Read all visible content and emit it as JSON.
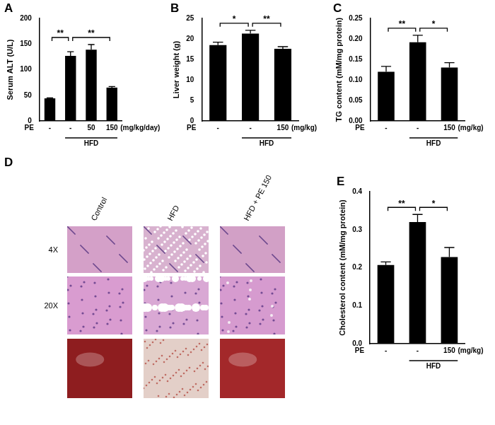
{
  "chart_data": [
    {
      "label": "A",
      "type": "bar",
      "y_label": "Serum ALT (U/L)",
      "categories": [
        "-",
        "-",
        "50",
        "150"
      ],
      "values": [
        44,
        127,
        139,
        65
      ],
      "errors": [
        1,
        8,
        10,
        2
      ],
      "color": "#000000",
      "ylim": [
        0,
        200
      ],
      "yticks": [
        0,
        50,
        100,
        150,
        200
      ],
      "grid": false,
      "x_row_label": "PE",
      "x_unit": "(mg/kg/day)",
      "group_label": "HFD",
      "group_members": [
        false,
        true,
        true,
        true
      ],
      "significance": [
        {
          "from": 0,
          "to": 1,
          "label": "**"
        },
        {
          "from": 1,
          "to": 3,
          "label": "**"
        }
      ]
    },
    {
      "label": "B",
      "type": "bar",
      "y_label": "Liver weight (g)",
      "categories": [
        "-",
        "-",
        "150"
      ],
      "values": [
        18.5,
        21.3,
        17.6
      ],
      "errors": [
        0.7,
        0.8,
        0.5
      ],
      "color": "#000000",
      "ylim": [
        0,
        25
      ],
      "yticks": [
        0,
        5,
        10,
        15,
        20,
        25
      ],
      "grid": false,
      "x_row_label": "PE",
      "x_unit": "(mg/kg)",
      "group_label": "HFD",
      "group_members": [
        false,
        true,
        true
      ],
      "significance": [
        {
          "from": 0,
          "to": 1,
          "label": "*"
        },
        {
          "from": 1,
          "to": 2,
          "label": "**"
        }
      ]
    },
    {
      "label": "C",
      "type": "bar",
      "y_label": "TG content (mM/mg protein)",
      "categories": [
        "-",
        "-",
        "150"
      ],
      "values": [
        0.12,
        0.192,
        0.13
      ],
      "errors": [
        0.013,
        0.017,
        0.012
      ],
      "color": "#000000",
      "ylim": [
        0,
        0.25
      ],
      "yticks": [
        {
          "value": 0,
          "label": "0.00"
        },
        {
          "value": 0.05,
          "label": "0.05"
        },
        {
          "value": 0.1,
          "label": "0.10"
        },
        {
          "value": 0.15,
          "label": "0.15"
        },
        {
          "value": 0.2,
          "label": "0.20"
        },
        {
          "value": 0.25,
          "label": "0.25"
        }
      ],
      "grid": false,
      "x_row_label": "PE",
      "x_unit": "(mg/kg)",
      "group_label": "HFD",
      "group_members": [
        false,
        true,
        true
      ],
      "significance": [
        {
          "from": 0,
          "to": 1,
          "label": "**"
        },
        {
          "from": 1,
          "to": 2,
          "label": "*"
        }
      ]
    },
    {
      "label": "E",
      "type": "bar",
      "y_label": "Cholesterol content (mM/mg protein)",
      "categories": [
        "-",
        "-",
        "150"
      ],
      "values": [
        0.207,
        0.32,
        0.228
      ],
      "errors": [
        0.008,
        0.02,
        0.025
      ],
      "color": "#000000",
      "ylim": [
        0,
        0.4
      ],
      "yticks": [
        {
          "value": 0,
          "label": "0.0"
        },
        {
          "value": 0.1,
          "label": "0.1"
        },
        {
          "value": 0.2,
          "label": "0.2"
        },
        {
          "value": 0.3,
          "label": "0.3"
        },
        {
          "value": 0.4,
          "label": "0.4"
        }
      ],
      "grid": false,
      "x_row_label": "PE",
      "x_unit": "(mg/kg)",
      "group_label": "HFD",
      "group_members": [
        false,
        true,
        true
      ],
      "significance": [
        {
          "from": 0,
          "to": 1,
          "label": "**"
        },
        {
          "from": 1,
          "to": 2,
          "label": "*"
        }
      ]
    }
  ],
  "panel_d": {
    "label": "D",
    "columns": [
      "Control",
      "HFD",
      "HFD + PE 150"
    ],
    "rows": [
      "4X",
      "20X"
    ]
  }
}
